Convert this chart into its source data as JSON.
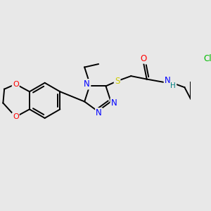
{
  "bg_color": "#e8e8e8",
  "bond_color": "#000000",
  "atom_colors": {
    "O": "#ff0000",
    "N": "#0000ff",
    "S": "#cccc00",
    "Cl": "#00bb00",
    "H": "#008080",
    "C": "#000000"
  },
  "figsize": [
    3.0,
    3.0
  ],
  "dpi": 100,
  "lw": 1.4
}
